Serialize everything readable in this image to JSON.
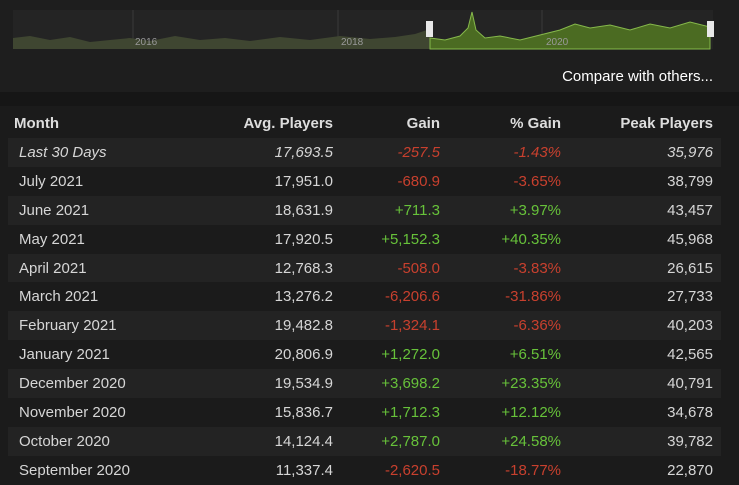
{
  "navigator": {
    "year_labels": [
      "2016",
      "2018",
      "2020"
    ]
  },
  "compare_link": "Compare with others...",
  "table": {
    "columns": [
      "Month",
      "Avg. Players",
      "Gain",
      "% Gain",
      "Peak Players"
    ],
    "rows": [
      [
        "Last 30 Days",
        "17,693.5",
        "-257.5",
        "-1.43%",
        "35,976"
      ],
      [
        "July 2021",
        "17,951.0",
        "-680.9",
        "-3.65%",
        "38,799"
      ],
      [
        "June 2021",
        "18,631.9",
        "+711.3",
        "+3.97%",
        "43,457"
      ],
      [
        "May 2021",
        "17,920.5",
        "+5,152.3",
        "+40.35%",
        "45,968"
      ],
      [
        "April 2021",
        "12,768.3",
        "-508.0",
        "-3.83%",
        "26,615"
      ],
      [
        "March 2021",
        "13,276.2",
        "-6,206.6",
        "-31.86%",
        "27,733"
      ],
      [
        "February 2021",
        "19,482.8",
        "-1,324.1",
        "-6.36%",
        "40,203"
      ],
      [
        "January 2021",
        "20,806.9",
        "+1,272.0",
        "+6.51%",
        "42,565"
      ],
      [
        "December 2020",
        "19,534.9",
        "+3,698.2",
        "+23.35%",
        "40,791"
      ],
      [
        "November 2020",
        "15,836.7",
        "+1,712.3",
        "+12.12%",
        "34,678"
      ],
      [
        "October 2020",
        "14,124.4",
        "+2,787.0",
        "+24.58%",
        "39,782"
      ],
      [
        "September 2020",
        "11,337.4",
        "-2,620.5",
        "-18.77%",
        "22,870"
      ]
    ]
  }
}
